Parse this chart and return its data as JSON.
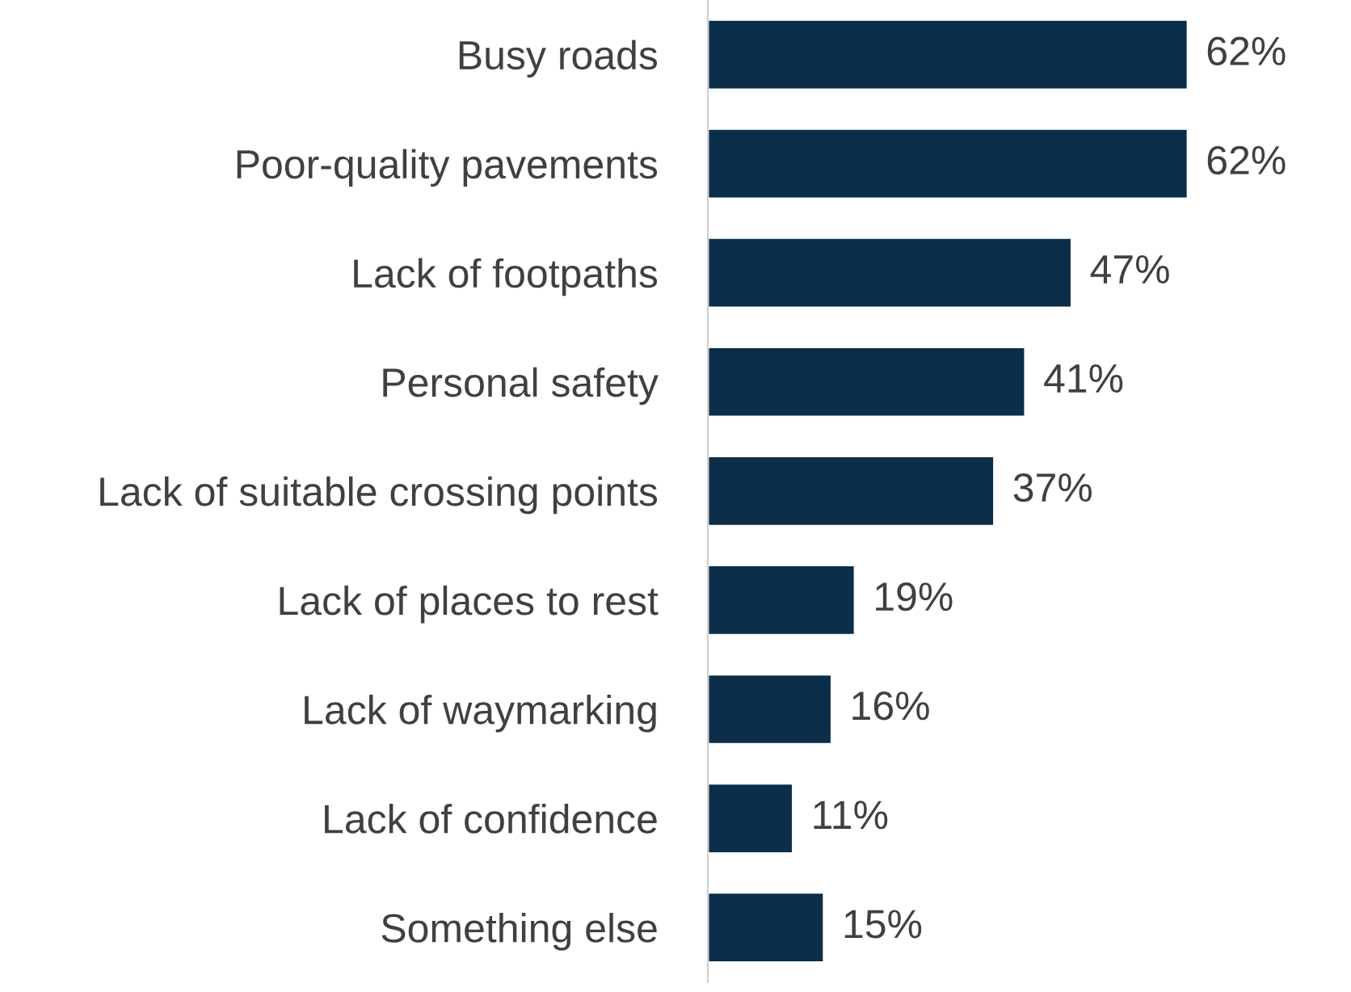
{
  "chart_data": {
    "type": "bar",
    "orientation": "horizontal",
    "categories": [
      "Busy roads",
      "Poor-quality pavements",
      "Lack of footpaths",
      "Personal safety",
      "Lack of suitable crossing points",
      "Lack of places to rest",
      "Lack of waymarking",
      "Lack of confidence",
      "Something else"
    ],
    "values": [
      62,
      62,
      47,
      41,
      37,
      19,
      16,
      11,
      15
    ],
    "color": "#0b2e4a",
    "value_labels": [
      "62%",
      "62%",
      "47%",
      "41%",
      "37%",
      "19%",
      "16%",
      "11%",
      "15%"
    ],
    "tick_labels": "y",
    "grid": false,
    "legend": false
  }
}
